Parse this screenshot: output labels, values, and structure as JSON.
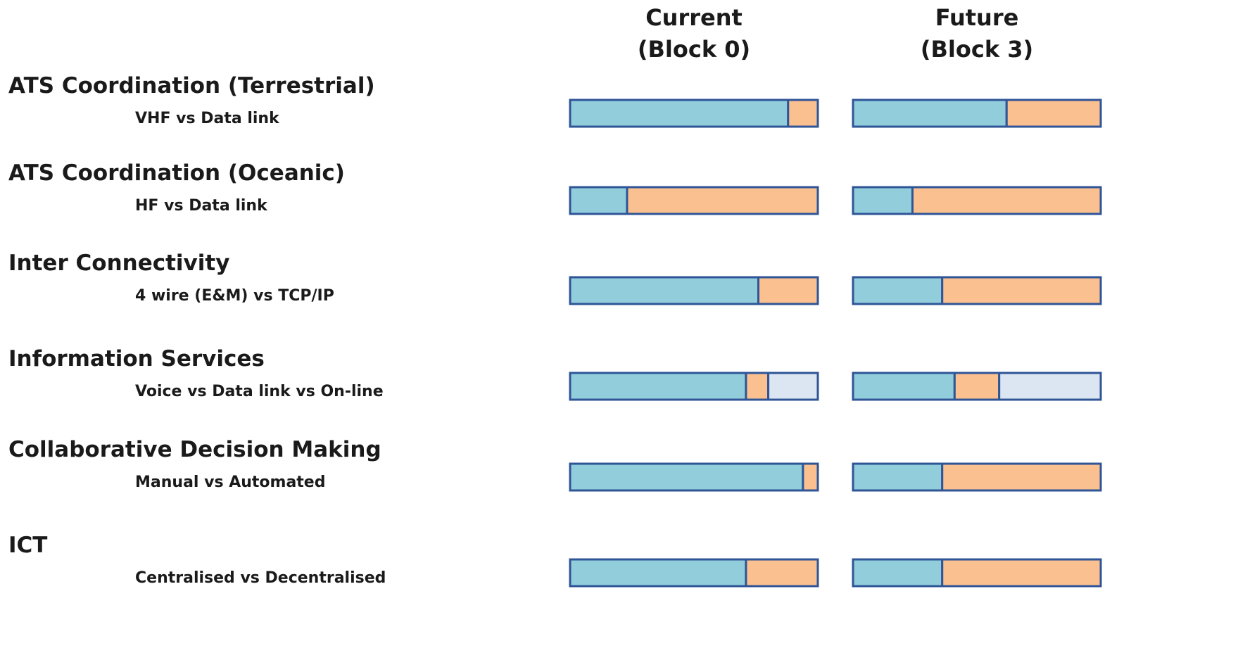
{
  "chart_data": {
    "type": "stacked-bar",
    "xlim": [
      0,
      100
    ],
    "colors": [
      "#92cddc",
      "#fac090",
      "#dce6f2"
    ],
    "stroke": "#2f5597",
    "columns": [
      {
        "key": "current",
        "lines": [
          "Current",
          "(Block 0)"
        ]
      },
      {
        "key": "future",
        "lines": [
          "Future",
          "(Block 3)"
        ]
      }
    ],
    "rows": [
      {
        "title": "ATS Coordination (Terrestrial)",
        "subtitle": "VHF vs Data link",
        "current": [
          88,
          12
        ],
        "future": [
          62,
          38
        ]
      },
      {
        "title": "ATS Coordination (Oceanic)",
        "subtitle": "HF vs Data link",
        "current": [
          23,
          77
        ],
        "future": [
          24,
          76
        ]
      },
      {
        "title": "Inter Connectivity",
        "subtitle": "4 wire (E&M) vs TCP/IP",
        "current": [
          76,
          24
        ],
        "future": [
          36,
          64
        ]
      },
      {
        "title": "Information Services",
        "subtitle": "Voice vs Data link vs On-line",
        "current": [
          71,
          9,
          20
        ],
        "future": [
          41,
          18,
          41
        ]
      },
      {
        "title": "Collaborative Decision Making",
        "subtitle": "Manual vs Automated",
        "current": [
          94,
          6
        ],
        "future": [
          36,
          64
        ]
      },
      {
        "title": "ICT",
        "subtitle": "Centralised vs Decentralised",
        "current": [
          71,
          29
        ],
        "future": [
          36,
          64
        ]
      }
    ]
  }
}
